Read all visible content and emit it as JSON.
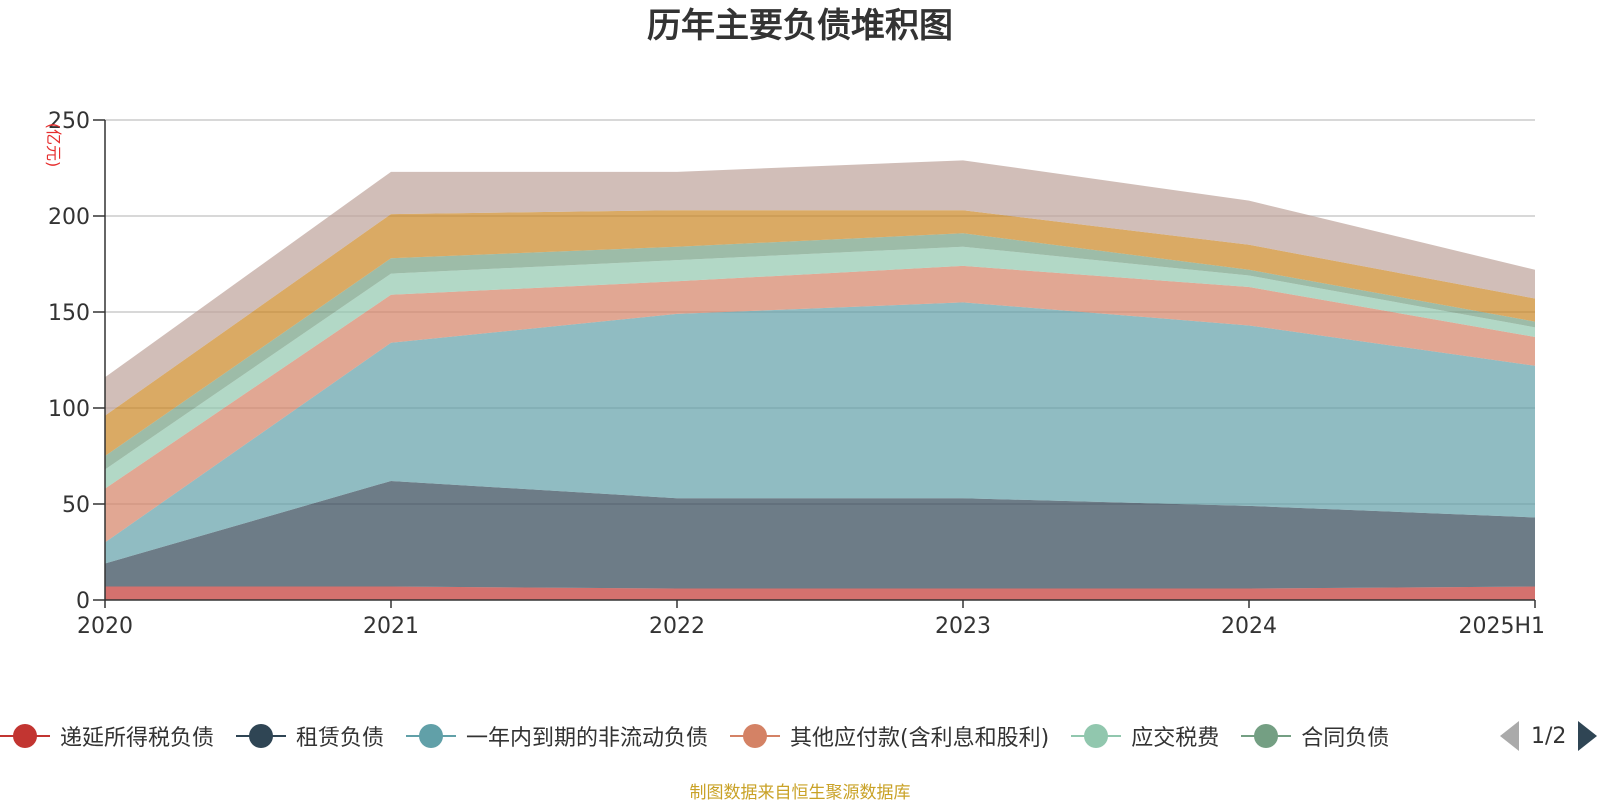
{
  "chart_data": {
    "type": "area",
    "stacked": true,
    "title": "历年主要负债堆积图",
    "unit_label": "(亿元)",
    "categories": [
      "2020",
      "2021",
      "2022",
      "2023",
      "2024",
      "2025H1"
    ],
    "ylim": [
      0,
      250
    ],
    "yticks": [
      0,
      50,
      100,
      150,
      200,
      250
    ],
    "grid": true,
    "legend_position": "bottom",
    "series": [
      {
        "name": "递延所得税负债",
        "color": "#c23531",
        "values": [
          7,
          7,
          6,
          6,
          6,
          7
        ]
      },
      {
        "name": "租赁负债",
        "color": "#2f4554",
        "values": [
          12,
          55,
          47,
          47,
          43,
          36
        ]
      },
      {
        "name": "一年内到期的非流动负债",
        "color": "#61a0a8",
        "values": [
          11,
          72,
          96,
          102,
          94,
          79
        ]
      },
      {
        "name": "其他应付款(含利息和股利)",
        "color": "#d48265",
        "values": [
          28,
          25,
          17,
          19,
          20,
          15
        ]
      },
      {
        "name": "应交税费",
        "color": "#91c7ae",
        "values": [
          10,
          11,
          11,
          10,
          6,
          5
        ]
      },
      {
        "name": "合同负债",
        "color": "#749f83",
        "values": [
          7,
          8,
          7,
          7,
          3,
          3
        ]
      },
      {
        "name": "",
        "color": "#ca8622",
        "values": [
          21,
          23,
          19,
          12,
          13,
          12
        ]
      },
      {
        "name": "",
        "color": "#bda29a",
        "values": [
          20,
          22,
          20,
          26,
          23,
          15
        ]
      }
    ]
  },
  "legend_items": [
    {
      "label": "递延所得税负债",
      "color": "#c23531"
    },
    {
      "label": "租赁负债",
      "color": "#2f4554"
    },
    {
      "label": "一年内到期的非流动负债",
      "color": "#61a0a8"
    },
    {
      "label": "其他应付款(含利息和股利)",
      "color": "#d48265"
    },
    {
      "label": "应交税费",
      "color": "#91c7ae"
    },
    {
      "label": "合同负债",
      "color": "#749f83"
    }
  ],
  "pager": {
    "text": "1/2",
    "prev_icon": "triangle-left-icon",
    "next_icon": "triangle-right-icon"
  },
  "source_note": "制图数据来自恒生聚源数据库"
}
